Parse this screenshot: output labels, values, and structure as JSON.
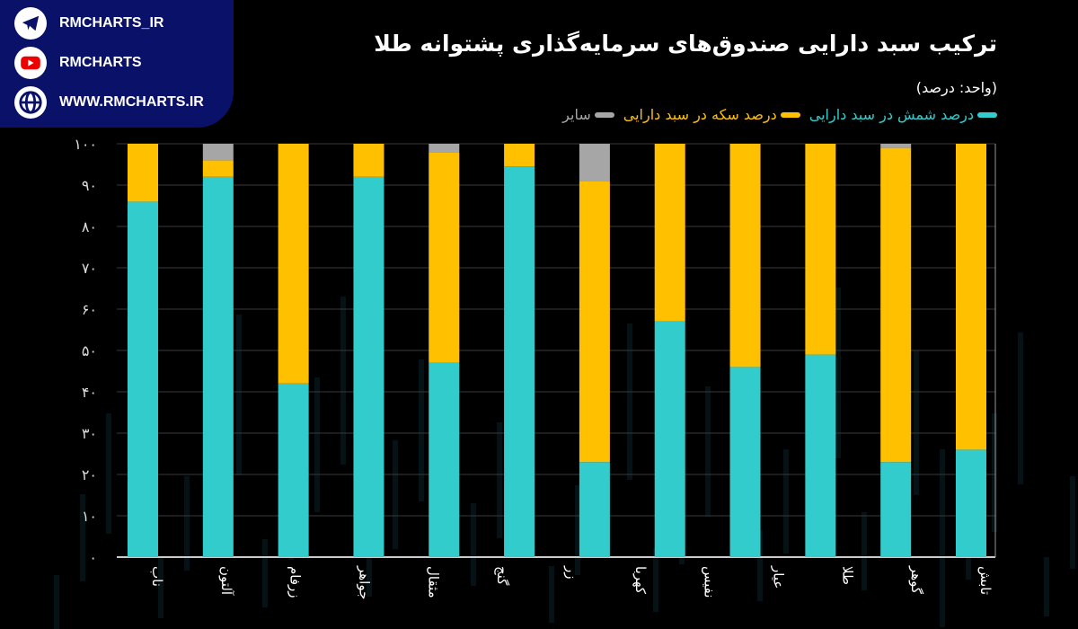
{
  "header": {
    "title": "ترکیب سبد دارایی صندوق‌های سرمایه‌گذاری پشتوانه طلا",
    "unit": "(واحد: درصد)"
  },
  "colors": {
    "bullion": "#33cccc",
    "coin": "#ffc000",
    "other": "#a6a6a6"
  },
  "chart_data": {
    "type": "bar",
    "stacked": true,
    "title": "ترکیب سبد دارایی صندوق‌های سرمایه‌گذاری پشتوانه طلا",
    "ylabel": "(واحد: درصد)",
    "ylim": [
      0,
      100
    ],
    "yticks": [
      "۰",
      "۱۰",
      "۲۰",
      "۳۰",
      "۴۰",
      "۵۰",
      "۶۰",
      "۷۰",
      "۸۰",
      "۹۰",
      "۱۰۰"
    ],
    "grid": true,
    "legend_position": "top-right",
    "categories": [
      "ناب",
      "آلتون",
      "زرفام",
      "جواهر",
      "مثقال",
      "گنج",
      "زر",
      "کهربا",
      "نفیس",
      "عیار",
      "طلا",
      "گوهر",
      "تابش"
    ],
    "series": [
      {
        "name": "درصد شمش در سبد دارایی",
        "values": [
          86,
          92,
          42,
          92,
          47,
          94.5,
          null,
          23,
          57,
          46,
          49,
          23,
          26
        ]
      },
      {
        "name": "درصد سکه در سبد دارایی",
        "values": [
          14,
          4,
          58,
          8,
          51,
          5.5,
          null,
          68,
          43,
          54,
          51,
          76,
          74
        ]
      },
      {
        "name": "سایر",
        "values": [
          0,
          4,
          0,
          0,
          2,
          0,
          null,
          9,
          0,
          0,
          0,
          1,
          0
        ]
      }
    ]
  },
  "social": {
    "telegram": "RMCHARTS_IR",
    "youtube": "RMCHARTS",
    "website": "WWW.RMCHARTS.IR"
  }
}
